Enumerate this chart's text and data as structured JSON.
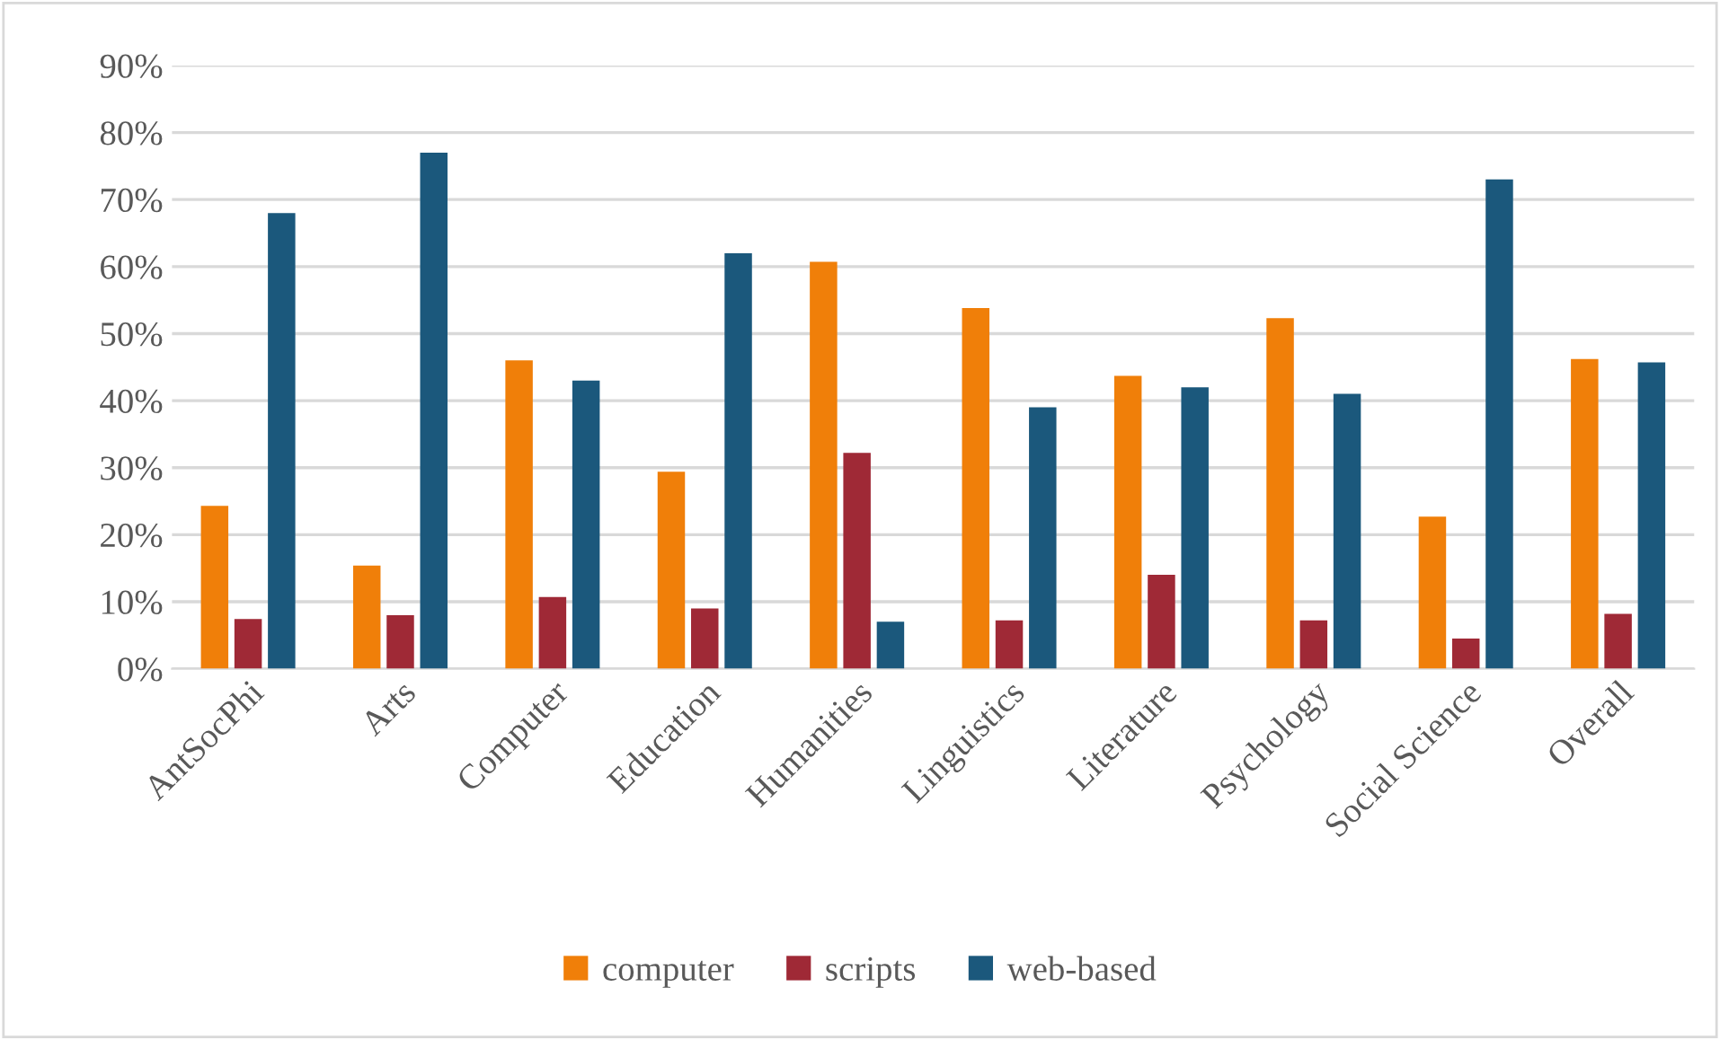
{
  "chart_data": {
    "type": "bar",
    "categories": [
      "AntSocPhi",
      "Arts",
      "Computer",
      "Education",
      "Humanities",
      "Linguistics",
      "Literature",
      "Psychology",
      "Social Science",
      "Overall"
    ],
    "series": [
      {
        "name": "computer",
        "color": "#f07f09",
        "values": [
          24.3,
          15.4,
          46,
          29.4,
          60.7,
          53.8,
          43.7,
          52.3,
          22.7,
          46.2
        ]
      },
      {
        "name": "scripts",
        "color": "#9f2936",
        "values": [
          7.4,
          8,
          10.7,
          9,
          32.2,
          7.2,
          14,
          7.2,
          4.5,
          8.2
        ]
      },
      {
        "name": "web-based",
        "color": "#1b587c",
        "values": [
          68,
          77,
          43,
          62,
          7,
          39,
          42,
          41,
          73,
          45.7
        ]
      }
    ],
    "ylim": [
      0,
      90
    ],
    "yticks": [
      {
        "value": 0,
        "label": "0%"
      },
      {
        "value": 10,
        "label": "10%"
      },
      {
        "value": 20,
        "label": "20%"
      },
      {
        "value": 30,
        "label": "30%"
      },
      {
        "value": 40,
        "label": "40%"
      },
      {
        "value": 50,
        "label": "50%"
      },
      {
        "value": 60,
        "label": "60%"
      },
      {
        "value": 70,
        "label": "70%"
      },
      {
        "value": 80,
        "label": "80%"
      },
      {
        "value": 90,
        "label": "90%"
      }
    ],
    "grid": "y",
    "legend": "bottom"
  }
}
